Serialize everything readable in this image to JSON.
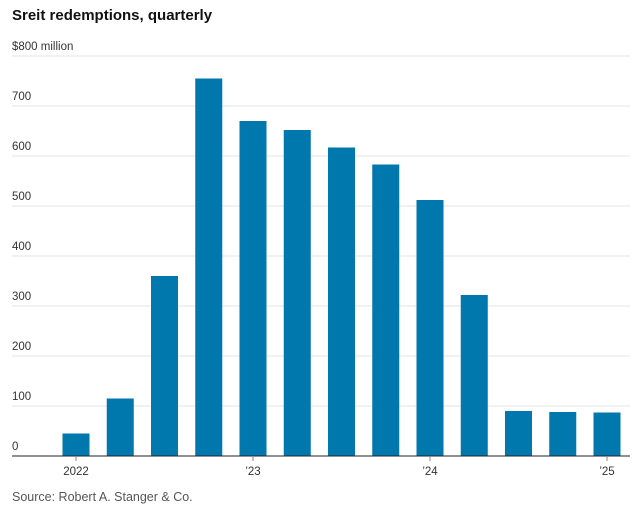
{
  "chart_data": {
    "type": "bar",
    "title": "Sreit redemptions, quarterly",
    "source": "Source: Robert A. Stanger & Co.",
    "y_unit_label": "$800 million",
    "xlabel": "",
    "ylabel": "",
    "ylim": [
      0,
      800
    ],
    "y_ticks": [
      0,
      100,
      200,
      300,
      400,
      500,
      600,
      700,
      800
    ],
    "y_tick_labels": [
      "0",
      "100",
      "200",
      "300",
      "400",
      "500",
      "600",
      "700",
      "$800 million"
    ],
    "categories": [
      "2022 Q1",
      "2022 Q2",
      "2022 Q3",
      "2022 Q4",
      "2023 Q1",
      "2023 Q2",
      "2023 Q3",
      "2023 Q4",
      "2024 Q1",
      "2024 Q2",
      "2024 Q3",
      "2024 Q4",
      "2025 Q1"
    ],
    "values": [
      45,
      115,
      360,
      755,
      670,
      652,
      617,
      583,
      512,
      322,
      90,
      88,
      87
    ],
    "x_tick_labels": [
      {
        "label": "2022",
        "index": 0
      },
      {
        "label": "’23",
        "index": 4
      },
      {
        "label": "’24",
        "index": 8
      },
      {
        "label": "’25",
        "index": 12
      }
    ],
    "bar_color": "#0077ad",
    "grid": true,
    "legend": "none"
  }
}
